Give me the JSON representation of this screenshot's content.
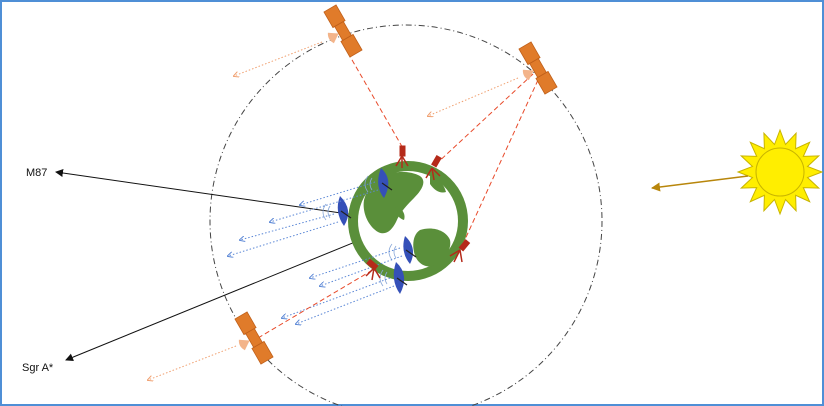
{
  "labels": {
    "m87": "M87",
    "sgra": "Sgr A*"
  },
  "colors": {
    "frame": "#4f8fd6",
    "orbit": "#444444",
    "earth_land": "#5a8f3a",
    "satellite_body": "#e07b2a",
    "downlink": "#e84a2a",
    "beam": "#f0a070",
    "ground_signal": "#5b87d6",
    "dish": "#3550b8",
    "ground_station": "#b52a1a",
    "sun": "#ffee00",
    "sun_arrow": "#b8860b",
    "source_arrow": "#111111"
  }
}
